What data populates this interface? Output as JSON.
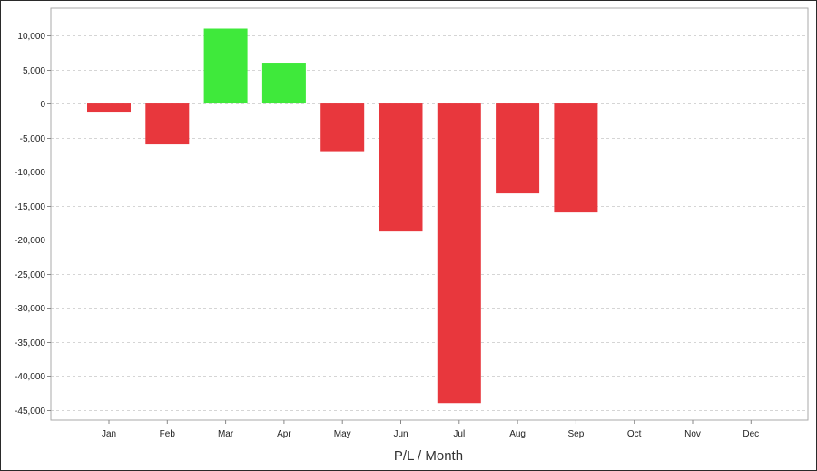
{
  "chart_data": {
    "type": "bar",
    "title": "",
    "xlabel": "P/L / Month",
    "ylabel": "",
    "categories": [
      "Jan",
      "Feb",
      "Mar",
      "Apr",
      "May",
      "Jun",
      "Jul",
      "Aug",
      "Sep",
      "Oct",
      "Nov",
      "Dec"
    ],
    "values": [
      -1200,
      -6000,
      11000,
      6000,
      -7000,
      -18800,
      -44000,
      -13200,
      -16000,
      null,
      null,
      null
    ],
    "ylim": [
      -46500,
      14000
    ],
    "yticks": [
      10000,
      5000,
      0,
      -5000,
      -10000,
      -15000,
      -20000,
      -25000,
      -30000,
      -35000,
      -40000,
      -45000
    ],
    "ytick_labels": [
      "10,000",
      "5,000",
      "0",
      "-5,000",
      "-10,000",
      "-15,000",
      "-20,000",
      "-25,000",
      "-30,000",
      "-35,000",
      "-40,000",
      "-45,000"
    ],
    "grid": true,
    "legend": "none",
    "colors": {
      "positive": "#3fe93b",
      "negative": "#e8373d",
      "grid": "#d5d5d5",
      "axis": "#888888"
    }
  }
}
